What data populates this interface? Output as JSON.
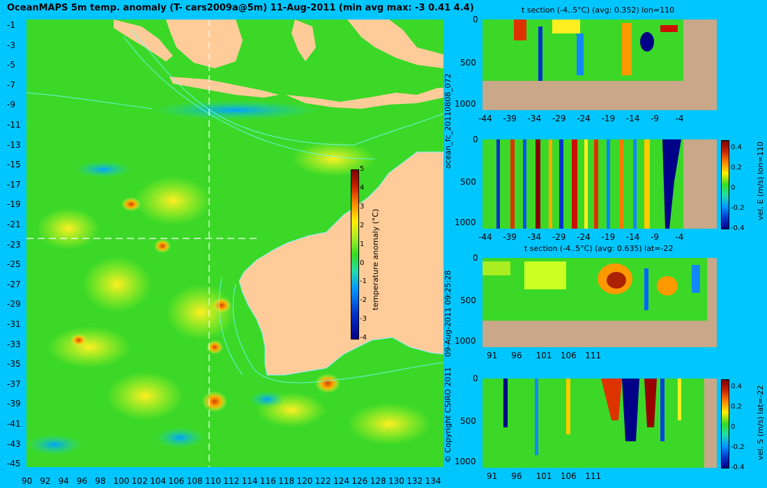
{
  "title": "OceanMAPS 5m temp. anomaly (T- cars2009a@5m) 11-Aug-2011 (min avg max: -3 0.41 4.4)",
  "map": {
    "lat_labels": [
      "-1",
      "-3",
      "-5",
      "-7",
      "-9",
      "-11",
      "-13",
      "-15",
      "-17",
      "-19",
      "-21",
      "-23",
      "-25",
      "-27",
      "-29",
      "-31",
      "-33",
      "-35",
      "-37",
      "-39",
      "-41",
      "-43",
      "-45"
    ],
    "lon_labels": [
      "90",
      "92",
      "94",
      "96",
      "98",
      "100",
      "102",
      "104",
      "106",
      "108",
      "110",
      "112",
      "114",
      "116",
      "118",
      "120",
      "122",
      "124",
      "126",
      "128",
      "130",
      "132",
      "134"
    ],
    "colorbar": {
      "label": "temperature anomaly (°C)",
      "ticks": [
        "5",
        "4",
        "3",
        "2",
        "1",
        "0",
        "-1",
        "-2",
        "-3",
        "-4"
      ]
    },
    "side_text_left": "09-Aug-2011 09:25:28",
    "copyright": "© Copyright CSIRO 2011",
    "colors": {
      "land": "#ffcc99",
      "background": "#00c6ff",
      "ocean_green": "#33dd22",
      "contour": "#66ffff"
    }
  },
  "side_label_top": "ocean_fc_20110808_072",
  "panels": [
    {
      "title": "t section (-4..5°C) (avg: 0.352) lon=110",
      "x_ticks": [
        "-44",
        "-39",
        "-34",
        "-29",
        "-24",
        "-19",
        "-14",
        "-9",
        "-4"
      ],
      "y_ticks": [
        "0",
        "500",
        "1000"
      ]
    },
    {
      "title": "",
      "x_ticks": [
        "-44",
        "-39",
        "-34",
        "-29",
        "-24",
        "-19",
        "-14",
        "-9",
        "-4"
      ],
      "y_ticks": [
        "0",
        "500",
        "1000"
      ],
      "colorbar": {
        "label": "vel. E (m/s) lon=110",
        "ticks": [
          "0.4",
          "0.2",
          "0",
          "-0.2",
          "-0.4"
        ]
      }
    },
    {
      "title": "t section (-4..5°C) (avg: 0.635) lat=-22",
      "x_ticks": [
        "91",
        "96",
        "101",
        "106",
        "111"
      ],
      "y_ticks": [
        "0",
        "500",
        "1000"
      ]
    },
    {
      "title": "",
      "x_ticks": [
        "91",
        "96",
        "101",
        "106",
        "111"
      ],
      "y_ticks": [
        "0",
        "500",
        "1000"
      ],
      "colorbar": {
        "label": "vel. S (m/s) lat=-22",
        "ticks": [
          "0.4",
          "0.2",
          "0",
          "-0.2",
          "-0.4"
        ]
      }
    }
  ]
}
